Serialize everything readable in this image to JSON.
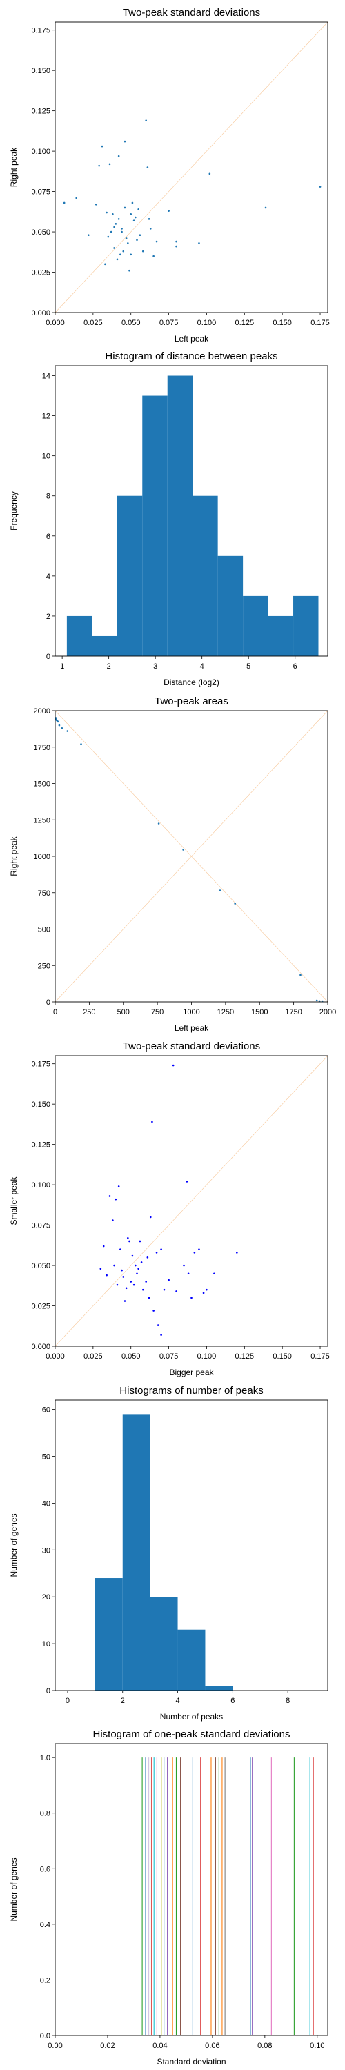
{
  "chart_data": [
    {
      "type": "scatter",
      "title": "Two-peak standard deviations",
      "xlabel": "Left peak",
      "ylabel": "Right peak",
      "xlim": [
        0,
        0.18
      ],
      "ylim": [
        0,
        0.18
      ],
      "xticks": [
        "0.000",
        "0.025",
        "0.050",
        "0.075",
        "0.100",
        "0.125",
        "0.150",
        "0.175"
      ],
      "yticks": [
        "0.000",
        "0.025",
        "0.050",
        "0.075",
        "0.100",
        "0.125",
        "0.150",
        "0.175"
      ],
      "diagonal": true,
      "point_color": "#1f77b4",
      "x": [
        0.006,
        0.014,
        0.022,
        0.027,
        0.029,
        0.031,
        0.033,
        0.034,
        0.035,
        0.036,
        0.037,
        0.038,
        0.039,
        0.039,
        0.04,
        0.041,
        0.042,
        0.042,
        0.043,
        0.044,
        0.044,
        0.045,
        0.046,
        0.046,
        0.047,
        0.048,
        0.049,
        0.05,
        0.05,
        0.051,
        0.052,
        0.053,
        0.054,
        0.055,
        0.056,
        0.058,
        0.06,
        0.061,
        0.062,
        0.063,
        0.065,
        0.067,
        0.075,
        0.08,
        0.08,
        0.095,
        0.102,
        0.139,
        0.175
      ],
      "y": [
        0.068,
        0.071,
        0.048,
        0.067,
        0.091,
        0.103,
        0.03,
        0.062,
        0.047,
        0.092,
        0.05,
        0.061,
        0.04,
        0.053,
        0.055,
        0.033,
        0.058,
        0.097,
        0.036,
        0.052,
        0.05,
        0.038,
        0.106,
        0.065,
        0.046,
        0.043,
        0.026,
        0.061,
        0.036,
        0.068,
        0.057,
        0.059,
        0.045,
        0.064,
        0.048,
        0.038,
        0.119,
        0.09,
        0.058,
        0.052,
        0.035,
        0.044,
        0.063,
        0.041,
        0.044,
        0.043,
        0.086,
        0.065,
        0.078
      ]
    },
    {
      "type": "histogram",
      "title": "Histogram of distance between peaks",
      "xlabel": "Distance (log2)",
      "ylabel": "Frequency",
      "xlim": [
        0.85,
        6.7
      ],
      "ylim": [
        0,
        14.5
      ],
      "xticks": [
        "1",
        "2",
        "3",
        "4",
        "5",
        "6"
      ],
      "yticks": [
        "0",
        "2",
        "4",
        "6",
        "8",
        "10",
        "12",
        "14"
      ],
      "bar_color": "#1f77b4",
      "bin_edges": [
        1.1,
        1.64,
        2.18,
        2.72,
        3.26,
        3.8,
        4.34,
        4.88,
        5.42,
        5.96,
        6.5
      ],
      "counts": [
        2,
        1,
        8,
        13,
        14,
        8,
        5,
        3,
        2,
        3
      ]
    },
    {
      "type": "scatter",
      "title": "Two-peak areas",
      "xlabel": "Left peak",
      "ylabel": "Right peak",
      "xlim": [
        0,
        2000
      ],
      "ylim": [
        0,
        2000
      ],
      "xticks": [
        "0",
        "250",
        "500",
        "750",
        "1000",
        "1250",
        "1500",
        "1750",
        "2000"
      ],
      "yticks": [
        "0",
        "250",
        "500",
        "750",
        "1000",
        "1250",
        "1500",
        "1750",
        "2000"
      ],
      "diagonal": true,
      "anti_diagonal": true,
      "point_color": "#1f77b4",
      "x": [
        2,
        5,
        10,
        15,
        20,
        30,
        50,
        90,
        190,
        760,
        940,
        1210,
        1320,
        1800,
        1920,
        1940,
        1960
      ],
      "y": [
        1950,
        1940,
        1935,
        1930,
        1925,
        1900,
        1880,
        1860,
        1770,
        1225,
        1045,
        765,
        675,
        185,
        10,
        5,
        2
      ]
    },
    {
      "type": "scatter",
      "title": "Two-peak standard deviations",
      "xlabel": "Bigger peak",
      "ylabel": "Smaller peak",
      "xlim": [
        0,
        0.18
      ],
      "ylim": [
        0,
        0.18
      ],
      "xticks": [
        "0.000",
        "0.025",
        "0.050",
        "0.075",
        "0.100",
        "0.125",
        "0.150",
        "0.175"
      ],
      "yticks": [
        "0.000",
        "0.025",
        "0.050",
        "0.075",
        "0.100",
        "0.125",
        "0.150",
        "0.175"
      ],
      "diagonal": true,
      "point_color": "#0000ff",
      "x": [
        0.03,
        0.032,
        0.034,
        0.036,
        0.038,
        0.039,
        0.04,
        0.041,
        0.042,
        0.043,
        0.044,
        0.045,
        0.046,
        0.047,
        0.048,
        0.049,
        0.05,
        0.051,
        0.052,
        0.053,
        0.054,
        0.055,
        0.056,
        0.057,
        0.058,
        0.06,
        0.061,
        0.062,
        0.063,
        0.065,
        0.067,
        0.07,
        0.072,
        0.075,
        0.08,
        0.085,
        0.088,
        0.09,
        0.092,
        0.095,
        0.098,
        0.1,
        0.105,
        0.12,
        0.064,
        0.078,
        0.087,
        0.068,
        0.07
      ],
      "y": [
        0.048,
        0.062,
        0.044,
        0.093,
        0.078,
        0.05,
        0.091,
        0.038,
        0.099,
        0.06,
        0.047,
        0.043,
        0.028,
        0.036,
        0.067,
        0.065,
        0.04,
        0.056,
        0.038,
        0.05,
        0.045,
        0.048,
        0.065,
        0.052,
        0.035,
        0.04,
        0.055,
        0.03,
        0.08,
        0.022,
        0.058,
        0.06,
        0.035,
        0.041,
        0.034,
        0.05,
        0.045,
        0.03,
        0.058,
        0.06,
        0.033,
        0.035,
        0.045,
        0.058,
        0.139,
        0.174,
        0.102,
        0.013,
        0.007
      ]
    },
    {
      "type": "histogram",
      "title": "Histograms of number of peaks",
      "xlabel": "Number of peaks",
      "ylabel": "Number of genes",
      "xlim": [
        -0.45,
        9.45
      ],
      "ylim": [
        0,
        62
      ],
      "xticks": [
        "0",
        "2",
        "4",
        "6",
        "8"
      ],
      "yticks": [
        "0",
        "10",
        "20",
        "30",
        "40",
        "50",
        "60"
      ],
      "bar_color": "#1f77b4",
      "bin_edges": [
        1,
        2,
        3,
        4,
        5,
        6
      ],
      "counts": [
        24,
        59,
        20,
        13,
        1
      ]
    },
    {
      "type": "vlines",
      "title": "Histogram of one-peak standard deviations",
      "xlabel": "Standard deviation",
      "ylabel": "Number of genes",
      "xlim": [
        0,
        0.104
      ],
      "ylim": [
        0,
        1.05
      ],
      "xticks": [
        "0.00",
        "0.02",
        "0.04",
        "0.06",
        "0.08",
        "0.10"
      ],
      "yticks": [
        "0.0",
        "0.2",
        "0.4",
        "0.6",
        "0.8",
        "1.0"
      ],
      "lines": [
        {
          "x": 0.0332,
          "color": "#2ca02c"
        },
        {
          "x": 0.0345,
          "color": "#1f77b4"
        },
        {
          "x": 0.0355,
          "color": "#9467bd"
        },
        {
          "x": 0.0362,
          "color": "#7f7f7f"
        },
        {
          "x": 0.0368,
          "color": "#d62728"
        },
        {
          "x": 0.0377,
          "color": "#17becf"
        },
        {
          "x": 0.0388,
          "color": "#e377c2"
        },
        {
          "x": 0.0405,
          "color": "#bcbd22"
        },
        {
          "x": 0.0415,
          "color": "#1f77b4"
        },
        {
          "x": 0.0428,
          "color": "#9467bd"
        },
        {
          "x": 0.0448,
          "color": "#ff7f0e"
        },
        {
          "x": 0.0462,
          "color": "#2ca02c"
        },
        {
          "x": 0.0478,
          "color": "#8c564b"
        },
        {
          "x": 0.0525,
          "color": "#1f77b4"
        },
        {
          "x": 0.0555,
          "color": "#d62728"
        },
        {
          "x": 0.0595,
          "color": "#ff7f0e"
        },
        {
          "x": 0.0612,
          "color": "#8c564b"
        },
        {
          "x": 0.0625,
          "color": "#2ca02c"
        },
        {
          "x": 0.0637,
          "color": "#ff7f0e"
        },
        {
          "x": 0.0648,
          "color": "#7f7f7f"
        },
        {
          "x": 0.0745,
          "color": "#1f77b4"
        },
        {
          "x": 0.0752,
          "color": "#9467bd"
        },
        {
          "x": 0.0825,
          "color": "#e377c2"
        },
        {
          "x": 0.0912,
          "color": "#2ca02c"
        },
        {
          "x": 0.0972,
          "color": "#17becf"
        },
        {
          "x": 0.0985,
          "color": "#d62728"
        }
      ]
    }
  ]
}
